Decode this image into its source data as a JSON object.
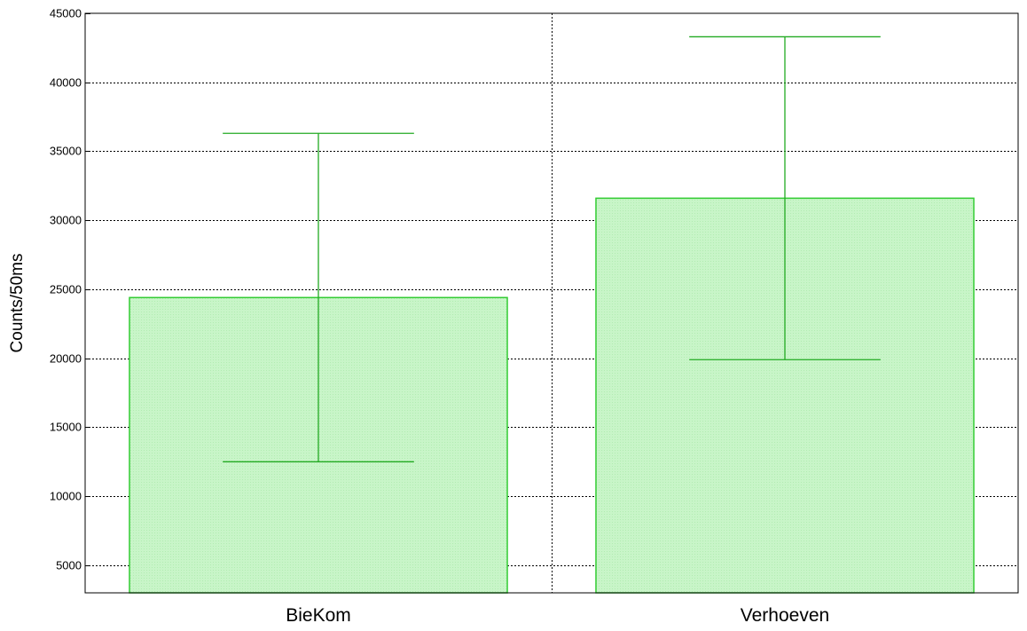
{
  "chart_data": {
    "type": "bar",
    "title": "",
    "xlabel": "",
    "ylabel": "Counts/50ms",
    "categories": [
      "BieKom",
      "Verhoeven"
    ],
    "series": [
      {
        "values": [
          24400,
          31600
        ],
        "error_low": [
          12500,
          19900
        ],
        "error_high": [
          36300,
          43300
        ]
      }
    ],
    "ylim": [
      3000,
      45000
    ],
    "yticks": [
      5000,
      10000,
      15000,
      20000,
      25000,
      30000,
      35000,
      40000,
      45000
    ],
    "ytick_labels": [
      "5000",
      "10000",
      "15000",
      "20000",
      "25000",
      "30000",
      "35000",
      "40000",
      "45000"
    ],
    "grid": true,
    "colors": {
      "bar_fill": "#c5f5c5",
      "bar_edge": "#33cc33",
      "error_bar": "#22aa22",
      "grid": "#000000"
    }
  }
}
